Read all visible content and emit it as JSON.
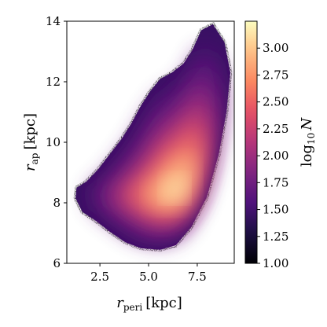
{
  "chart_data": {
    "type": "heatmap",
    "title": "",
    "xlabel": {
      "symbol": "r",
      "subscript": "peri",
      "unit": "[kpc]"
    },
    "ylabel": {
      "symbol": "r",
      "subscript": "ap",
      "unit": "[kpc]"
    },
    "xlim": [
      0.8,
      9.4
    ],
    "ylim": [
      6,
      14
    ],
    "xticks": [
      2.5,
      5.0,
      7.5
    ],
    "xtick_labels": [
      "2.5",
      "5.0",
      "7.5"
    ],
    "yticks": [
      6,
      8,
      10,
      12,
      14
    ],
    "ytick_labels": [
      "6",
      "8",
      "10",
      "12",
      "14"
    ],
    "grid": false,
    "colormap": "magma",
    "colorbar": {
      "label": {
        "base": "log",
        "subscript": "10",
        "symbol": "N"
      },
      "range": [
        1.0,
        3.25
      ],
      "ticks": [
        1.0,
        1.25,
        1.5,
        1.75,
        2.0,
        2.25,
        2.5,
        2.75,
        3.0
      ],
      "tick_labels": [
        "1.00",
        "1.25",
        "1.50",
        "1.75",
        "2.00",
        "2.25",
        "2.50",
        "2.75",
        "3.00"
      ]
    },
    "density_outline": [
      [
        1.25,
        8.15
      ],
      [
        1.6,
        7.7
      ],
      [
        2.3,
        7.4
      ],
      [
        3.0,
        7.05
      ],
      [
        3.8,
        6.7
      ],
      [
        4.6,
        6.5
      ],
      [
        5.6,
        6.45
      ],
      [
        6.4,
        6.6
      ],
      [
        7.2,
        7.2
      ],
      [
        8.0,
        8.2
      ],
      [
        8.6,
        9.6
      ],
      [
        9.0,
        11.0
      ],
      [
        9.2,
        12.3
      ],
      [
        8.9,
        13.3
      ],
      [
        8.3,
        13.9
      ],
      [
        7.7,
        13.7
      ],
      [
        7.25,
        13.05
      ],
      [
        6.8,
        12.6
      ],
      [
        6.2,
        12.3
      ],
      [
        5.6,
        12.1
      ],
      [
        5.1,
        11.7
      ],
      [
        4.6,
        11.2
      ],
      [
        4.1,
        10.6
      ],
      [
        3.6,
        10.1
      ],
      [
        3.0,
        9.6
      ],
      [
        2.4,
        9.1
      ],
      [
        1.8,
        8.7
      ],
      [
        1.3,
        8.5
      ]
    ],
    "density_peak": {
      "x": 6.5,
      "y": 8.3,
      "log10N": 3.2
    }
  }
}
